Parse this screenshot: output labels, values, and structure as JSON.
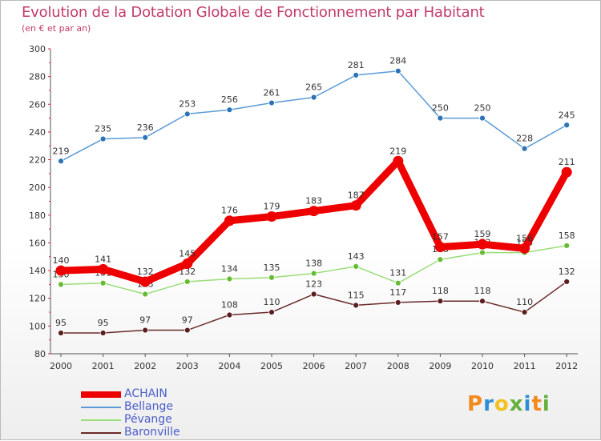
{
  "title": "Evolution de la Dotation Globale de Fonctionnement par Habitant",
  "subtitle": "(en € et par an)",
  "logo": [
    "P",
    "r",
    "o",
    "x",
    "i",
    "t",
    "i"
  ],
  "chart_data": {
    "type": "line",
    "title": "Evolution de la Dotation Globale de Fonctionnement par Habitant",
    "subtitle": "(en € et par an)",
    "xlabel": "",
    "ylabel": "",
    "ylim": [
      80,
      300
    ],
    "yticks": [
      80,
      100,
      120,
      140,
      160,
      180,
      200,
      220,
      240,
      260,
      280,
      300
    ],
    "grid": false,
    "legend": "bottom-left",
    "categories": [
      "2000",
      "2001",
      "2002",
      "2003",
      "2004",
      "2005",
      "2006",
      "2007",
      "2008",
      "2009",
      "2010",
      "2011",
      "2012"
    ],
    "series": [
      {
        "name": "Bellange",
        "color": "#5b9bd5",
        "marker": "#2c73b8",
        "values": [
          219,
          235,
          236,
          253,
          256,
          261,
          265,
          281,
          284,
          250,
          250,
          228,
          245
        ]
      },
      {
        "name": "Pévange",
        "color": "#99dd77",
        "marker": "#66bb33",
        "values": [
          130,
          131,
          123,
          132,
          134,
          135,
          138,
          143,
          131,
          148,
          153,
          153,
          158
        ]
      },
      {
        "name": "Baronville",
        "color": "#6b2a2a",
        "marker": "#5a1e1e",
        "values": [
          95,
          95,
          97,
          97,
          108,
          110,
          123,
          115,
          117,
          118,
          118,
          110,
          132
        ]
      },
      {
        "name": "ACHAIN",
        "color": "#ee0000",
        "marker": "#ee0000",
        "values": [
          140,
          141,
          132,
          145,
          176,
          179,
          183,
          187,
          219,
          157,
          159,
          156,
          211
        ]
      }
    ],
    "legend_order": [
      "ACHAIN",
      "Bellange",
      "Pévange",
      "Baronville"
    ]
  }
}
